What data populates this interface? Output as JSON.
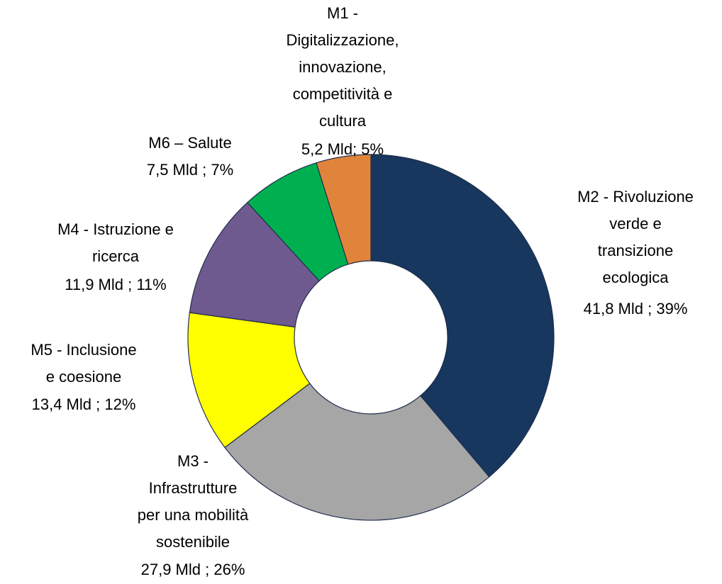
{
  "chart_data": {
    "type": "donut",
    "categories": [
      [
        "M2 - Rivoluzione",
        "verde e",
        "transizione",
        "ecologica"
      ],
      [
        "M3 -",
        "Infrastrutture",
        "per una mobilità",
        "sostenibile"
      ],
      [
        "M5 - Inclusione",
        "e coesione"
      ],
      [
        "M4 - Istruzione e",
        "ricerca"
      ],
      [
        "M6 – Salute"
      ],
      [
        "M1 -",
        "Digitalizzazione,",
        "innovazione,",
        "competitività e",
        "cultura"
      ]
    ],
    "values": [
      41.8,
      27.9,
      13.4,
      11.9,
      7.5,
      5.2
    ],
    "value_labels": [
      "41,8 Mld  ; 39%",
      "27,9 Mld  ; 26%",
      "13,4 Mld  ; 12%",
      "11,9 Mld  ; 11%",
      "7,5 Mld   ; 7%",
      "5,2  Mld;  5%"
    ],
    "colors": [
      "#17375e",
      "#a6a6a6",
      "#ffff00",
      "#6f5a8f",
      "#00b050",
      "#e0843c"
    ]
  }
}
